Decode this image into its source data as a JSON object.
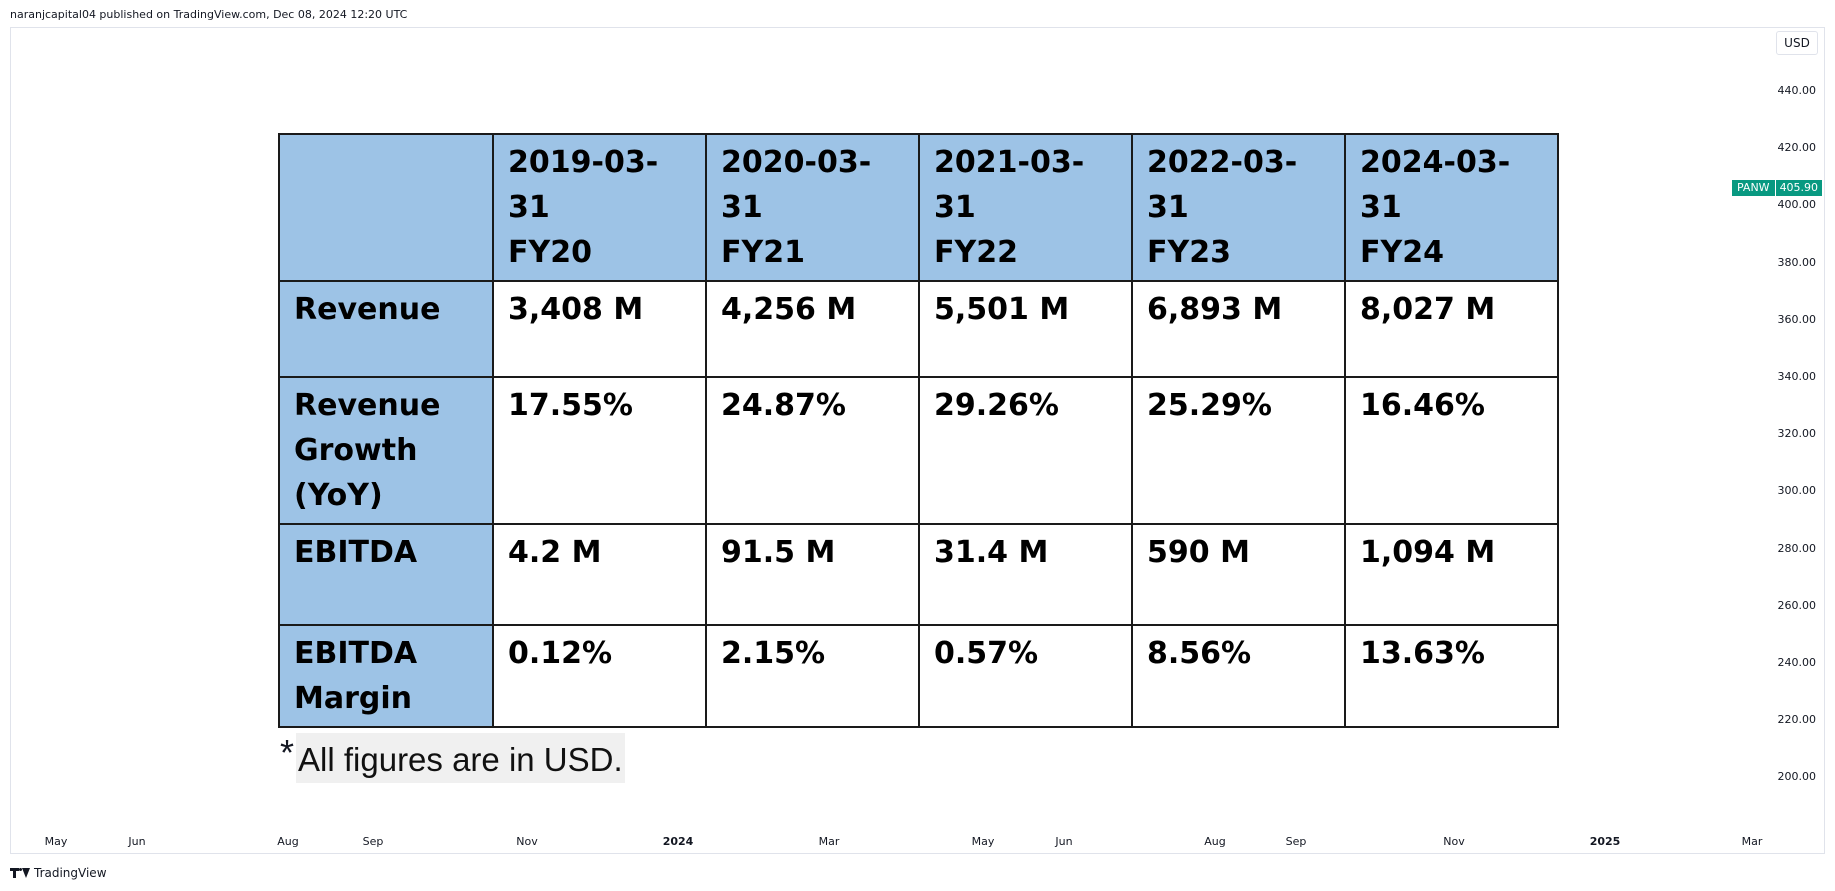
{
  "header": {
    "attribution": "naranjcapital04 published on TradingView.com, Dec 08, 2024 12:20 UTC"
  },
  "chart": {
    "currency": "USD",
    "symbol": "PANW",
    "last_price": "405.90",
    "y_ticks": [
      "440.00",
      "420.00",
      "400.00",
      "380.00",
      "360.00",
      "340.00",
      "320.00",
      "300.00",
      "280.00",
      "260.00",
      "240.00",
      "220.00",
      "200.00"
    ],
    "x_ticks": [
      {
        "label": "May",
        "bold": false
      },
      {
        "label": "Jun",
        "bold": false
      },
      {
        "label": "Aug",
        "bold": false
      },
      {
        "label": "Sep",
        "bold": false
      },
      {
        "label": "Nov",
        "bold": false
      },
      {
        "label": "2024",
        "bold": true
      },
      {
        "label": "Mar",
        "bold": false
      },
      {
        "label": "May",
        "bold": false
      },
      {
        "label": "Jun",
        "bold": false
      },
      {
        "label": "Aug",
        "bold": false
      },
      {
        "label": "Sep",
        "bold": false
      },
      {
        "label": "Nov",
        "bold": false
      },
      {
        "label": "2025",
        "bold": true
      },
      {
        "label": "Mar",
        "bold": false
      }
    ],
    "accent_color": "#089981"
  },
  "table": {
    "header_color": "#9dc3e6",
    "columns": [
      {
        "date": "2019-03-31",
        "fy": "FY20"
      },
      {
        "date": "2020-03-31",
        "fy": "FY21"
      },
      {
        "date": "2021-03-31",
        "fy": "FY22"
      },
      {
        "date": "2022-03-31",
        "fy": "FY23"
      },
      {
        "date": "2024-03-31",
        "fy": "FY24"
      }
    ],
    "rows": [
      {
        "label": [
          "Revenue"
        ],
        "values": [
          "3,408 M",
          "4,256 M",
          "5,501 M",
          "6,893 M",
          "8,027 M"
        ]
      },
      {
        "label": [
          "Revenue",
          "Growth",
          "(YoY)"
        ],
        "values": [
          "17.55%",
          "24.87%",
          "29.26%",
          "25.29%",
          "16.46%"
        ]
      },
      {
        "label": [
          "EBITDA"
        ],
        "values": [
          "4.2 M",
          "91.5 M",
          "31.4 M",
          "590 M",
          "1,094 M"
        ]
      },
      {
        "label": [
          "EBITDA",
          "Margin"
        ],
        "values": [
          "0.12%",
          "2.15%",
          "0.57%",
          "8.56%",
          "13.63%"
        ]
      }
    ]
  },
  "footnote": {
    "star": "*",
    "text": "All figures are in USD."
  },
  "footer": {
    "brand": "TradingView",
    "logo_icon": "tradingview-logo-icon"
  }
}
